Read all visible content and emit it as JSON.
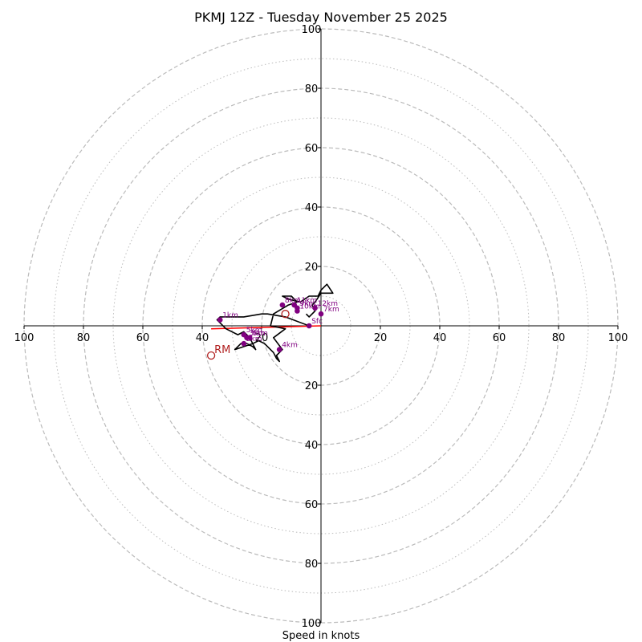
{
  "chart_data": {
    "type": "hodograph",
    "title": "PKMJ 12Z - Tuesday November 25 2025",
    "xlabel": "Speed in knots",
    "max_speed": 100,
    "ring_major_values": [
      20,
      40,
      60,
      80,
      100
    ],
    "ring_minor_values": [
      10,
      30,
      50,
      70,
      90
    ],
    "x_tick_values": [
      -100,
      -80,
      -60,
      -40,
      -20,
      20,
      40,
      60,
      80,
      100
    ],
    "x_tick_labels": [
      "100",
      "80",
      "60",
      "40",
      "20",
      "20",
      "40",
      "60",
      "80",
      "100"
    ],
    "y_tick_values": [
      100,
      80,
      60,
      40,
      20,
      -20,
      -40,
      -60,
      -80,
      -100
    ],
    "y_tick_labels": [
      "100",
      "80",
      "60",
      "40",
      "20",
      "20",
      "40",
      "60",
      "80",
      "100"
    ],
    "hodograph_trace": [
      [
        -4,
        0
      ],
      [
        -12,
        3
      ],
      [
        -18,
        4
      ],
      [
        -20,
        4
      ],
      [
        -26,
        3
      ],
      [
        -34,
        3
      ],
      [
        -35,
        2
      ],
      [
        -32,
        -1
      ],
      [
        -28,
        -3
      ],
      [
        -26,
        -2
      ],
      [
        -24,
        -4
      ],
      [
        -23,
        -6
      ],
      [
        -26,
        -7
      ],
      [
        -29,
        -8
      ],
      [
        -27,
        -6
      ],
      [
        -25,
        -6
      ],
      [
        -23,
        -7
      ],
      [
        -22,
        -8
      ],
      [
        -23,
        -6
      ],
      [
        -21,
        -5
      ],
      [
        -19,
        -6
      ],
      [
        -16,
        -9
      ],
      [
        -15,
        -11
      ],
      [
        -14,
        -12
      ],
      [
        -15,
        -10
      ],
      [
        -14,
        -9
      ],
      [
        -13,
        -8
      ],
      [
        -16,
        -4
      ],
      [
        -12,
        -1
      ],
      [
        -17,
        0
      ],
      [
        -16,
        4
      ],
      [
        -11,
        7
      ],
      [
        -8,
        8
      ],
      [
        -10,
        10
      ],
      [
        -13,
        10
      ],
      [
        -11,
        9
      ],
      [
        -7,
        8
      ],
      [
        -4,
        10
      ],
      [
        -1,
        10
      ],
      [
        0,
        12
      ],
      [
        2,
        14
      ],
      [
        4,
        11
      ],
      [
        0,
        11
      ],
      [
        -2,
        8
      ],
      [
        -3,
        7
      ],
      [
        -2,
        5
      ],
      [
        -4,
        3
      ],
      [
        -5,
        4
      ]
    ],
    "height_markers": [
      {
        "label": "Sfc",
        "u": -4,
        "v": 0
      },
      {
        "label": "1km",
        "u": -34,
        "v": 2
      },
      {
        "label": "2km",
        "u": -26,
        "v": -6
      },
      {
        "label": "3km",
        "u": -25,
        "v": -4
      },
      {
        "label": "4km",
        "u": -14,
        "v": -8
      },
      {
        "label": "5km",
        "u": -26,
        "v": -3
      },
      {
        "label": "6km",
        "u": -24,
        "v": -4
      },
      {
        "label": "7km",
        "u": 0,
        "v": 4
      },
      {
        "label": "8km",
        "u": -13,
        "v": 7
      },
      {
        "label": "9km",
        "u": -8,
        "v": 6
      },
      {
        "label": "10km",
        "u": -8,
        "v": 5
      },
      {
        "label": "11km",
        "u": -9,
        "v": 7
      },
      {
        "label": "12km",
        "u": -2,
        "v": 6
      }
    ],
    "storm_motion_vector": {
      "from": [
        -37,
        -1
      ],
      "to": [
        0,
        0
      ]
    },
    "right_mover": {
      "label": "RM",
      "u": -37,
      "v": -10
    },
    "left_mover": {
      "u": -12,
      "v": 4
    },
    "colors": {
      "trace": "#000000",
      "marker": "#800080",
      "storm_vector": "#ff0000",
      "rm": "#b22222",
      "grid": "#bbbbbb",
      "axis": "#000000"
    }
  }
}
